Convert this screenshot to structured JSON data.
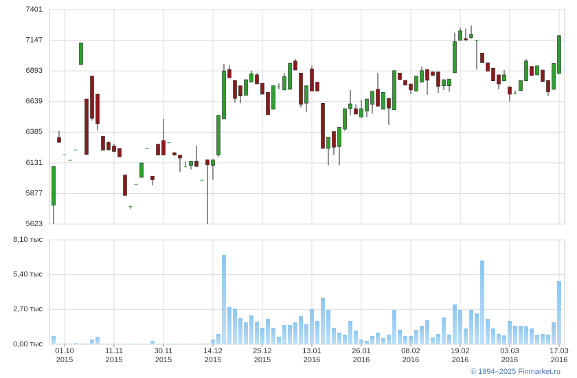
{
  "chart_data": [
    {
      "type": "candlestick",
      "open": [
        5780,
        6340,
        6200,
        6155,
        6240,
        6945,
        6660,
        6850,
        6700,
        6350,
        6300,
        6270,
        6250,
        6030,
        5770,
        5955,
        6010,
        6250,
        6020,
        6285,
        6315,
        6300,
        6215,
        6195,
        6100,
        6110,
        6145,
        5990,
        6155,
        6110,
        6195,
        6495,
        6905,
        6815,
        6770,
        6690,
        6800,
        6860,
        6790,
        6715,
        6575,
        6765,
        6735,
        6740,
        6975,
        6875,
        6625,
        6910,
        6800,
        6625,
        6250,
        6390,
        6265,
        6410,
        6580,
        6580,
        6510,
        6560,
        6615,
        6740,
        6575,
        6665,
        6570,
        6875,
        6815,
        6785,
        6725,
        6800,
        6905,
        6885,
        6885,
        6770,
        6770,
        6877,
        7147,
        7160,
        7170,
        7150,
        7040,
        6960,
        6915,
        6860,
        6810,
        6760,
        6710,
        6730,
        6810,
        6930,
        6860,
        6900,
        6815,
        6740,
        6871
      ],
      "high": [
        6100,
        6395,
        6200,
        6155,
        6240,
        7125,
        6660,
        6850,
        6700,
        6350,
        6310,
        6290,
        6250,
        6030,
        5775,
        5955,
        6130,
        6250,
        6020,
        6285,
        6495,
        6300,
        6220,
        6195,
        6140,
        6145,
        6275,
        5990,
        6160,
        6155,
        6525,
        6950,
        6940,
        6815,
        6770,
        6820,
        6895,
        6875,
        6790,
        6715,
        6770,
        6790,
        6875,
        6960,
        6990,
        6875,
        6770,
        6935,
        6800,
        6625,
        6345,
        6390,
        6425,
        6580,
        6735,
        6615,
        6650,
        6660,
        6725,
        6875,
        6715,
        6665,
        6895,
        6875,
        6815,
        6785,
        6850,
        6930,
        6905,
        6885,
        6885,
        6820,
        6825,
        7210,
        7250,
        7245,
        7270,
        7150,
        7040,
        6960,
        6915,
        6860,
        6900,
        6760,
        6730,
        6815,
        6990,
        6930,
        6935,
        6900,
        6815,
        6955,
        7190
      ],
      "low": [
        5623,
        6300,
        6200,
        6155,
        6240,
        6945,
        6200,
        6480,
        6400,
        6235,
        6230,
        6220,
        6180,
        5860,
        5750,
        5955,
        6010,
        6250,
        5945,
        6195,
        6195,
        6300,
        6190,
        6055,
        6100,
        6075,
        6100,
        5990,
        5623,
        5990,
        6180,
        6495,
        6835,
        6630,
        6625,
        6690,
        6800,
        6785,
        6700,
        6530,
        6575,
        6740,
        6735,
        6740,
        6900,
        6590,
        6550,
        6725,
        6725,
        6250,
        6110,
        6195,
        6110,
        6395,
        6525,
        6535,
        6510,
        6510,
        6540,
        6600,
        6575,
        6445,
        6570,
        6820,
        6775,
        6700,
        6725,
        6800,
        6695,
        6855,
        6710,
        6735,
        6720,
        6877,
        7147,
        7140,
        7160,
        6905,
        6960,
        6890,
        6810,
        6740,
        6810,
        6640,
        6700,
        6730,
        6810,
        6855,
        6860,
        6805,
        6685,
        6740,
        6871
      ],
      "close": [
        6100,
        6300,
        6200,
        6155,
        6240,
        7125,
        6200,
        6500,
        6455,
        6235,
        6240,
        6225,
        6180,
        5860,
        5770,
        5955,
        6130,
        6250,
        5990,
        6195,
        6195,
        6300,
        6195,
        6170,
        6100,
        6145,
        6100,
        5990,
        6115,
        6155,
        6525,
        6893,
        6835,
        6665,
        6685,
        6820,
        6870,
        6785,
        6700,
        6530,
        6770,
        6765,
        6845,
        6955,
        6900,
        6615,
        6770,
        6725,
        6725,
        6250,
        6345,
        6260,
        6425,
        6580,
        6620,
        6535,
        6580,
        6660,
        6725,
        6600,
        6715,
        6585,
        6895,
        6820,
        6775,
        6735,
        6850,
        6895,
        6815,
        6855,
        6765,
        6820,
        6825,
        7135,
        7225,
        7150,
        7195,
        7150,
        6960,
        6890,
        6810,
        6785,
        6860,
        6700,
        6710,
        6815,
        6975,
        6855,
        6935,
        6805,
        6720,
        6955,
        7185
      ],
      "up_color": "#2f9e2f",
      "down_color": "#8b1a1a",
      "ylim": [
        5623,
        7401
      ],
      "yticks": [
        5623,
        5877,
        6131,
        6385,
        6639,
        6893,
        7147,
        7401
      ],
      "grid": true
    },
    {
      "type": "bar",
      "categories": [
        null,
        null,
        "01.10 2015",
        null,
        null,
        null,
        null,
        null,
        null,
        null,
        null,
        "11.11 2015",
        null,
        null,
        null,
        null,
        null,
        null,
        null,
        null,
        "30.11 2015",
        null,
        null,
        null,
        null,
        null,
        null,
        null,
        null,
        "14.12 2015",
        null,
        null,
        null,
        null,
        null,
        null,
        null,
        null,
        "25.12 2015",
        null,
        null,
        null,
        null,
        null,
        null,
        null,
        null,
        "13.01 2016",
        null,
        null,
        null,
        null,
        null,
        null,
        null,
        null,
        "26.01 2016",
        null,
        null,
        null,
        null,
        null,
        null,
        null,
        null,
        "08.02 2016",
        null,
        null,
        null,
        null,
        null,
        null,
        null,
        null,
        "19.02 2016",
        null,
        null,
        null,
        null,
        null,
        null,
        null,
        null,
        "03.03 2016",
        null,
        null,
        null,
        null,
        null,
        null,
        null,
        null,
        "17.03 2016"
      ],
      "values": [
        640,
        50,
        50,
        60,
        80,
        50,
        60,
        370,
        590,
        40,
        40,
        40,
        40,
        40,
        40,
        40,
        40,
        40,
        270,
        40,
        40,
        40,
        40,
        40,
        40,
        40,
        40,
        40,
        60,
        370,
        800,
        6930,
        2880,
        2770,
        2020,
        1700,
        2240,
        1760,
        1280,
        1970,
        1280,
        590,
        1490,
        1490,
        1700,
        2180,
        1550,
        2720,
        1810,
        3620,
        2660,
        1280,
        910,
        750,
        1810,
        1070,
        370,
        270,
        640,
        910,
        480,
        750,
        2660,
        1120,
        640,
        640,
        1120,
        1440,
        1860,
        530,
        800,
        2080,
        750,
        3090,
        2660,
        1230,
        2660,
        2400,
        6500,
        1970,
        1230,
        800,
        690,
        1810,
        1440,
        1440,
        1390,
        1230,
        750,
        800,
        750,
        1700,
        4900
      ],
      "color": "#8cc6ef",
      "ylim": [
        0,
        8100
      ],
      "yticks": [
        {
          "value": 0,
          "label": "0,00 тыс"
        },
        {
          "value": 2700,
          "label": "2,70 тыс"
        },
        {
          "value": 5400,
          "label": "5,40 тыс"
        },
        {
          "value": 8100,
          "label": "8,10 тыс"
        }
      ],
      "grid": true,
      "source": "© 1994–2025 Finmarket.ru"
    }
  ]
}
